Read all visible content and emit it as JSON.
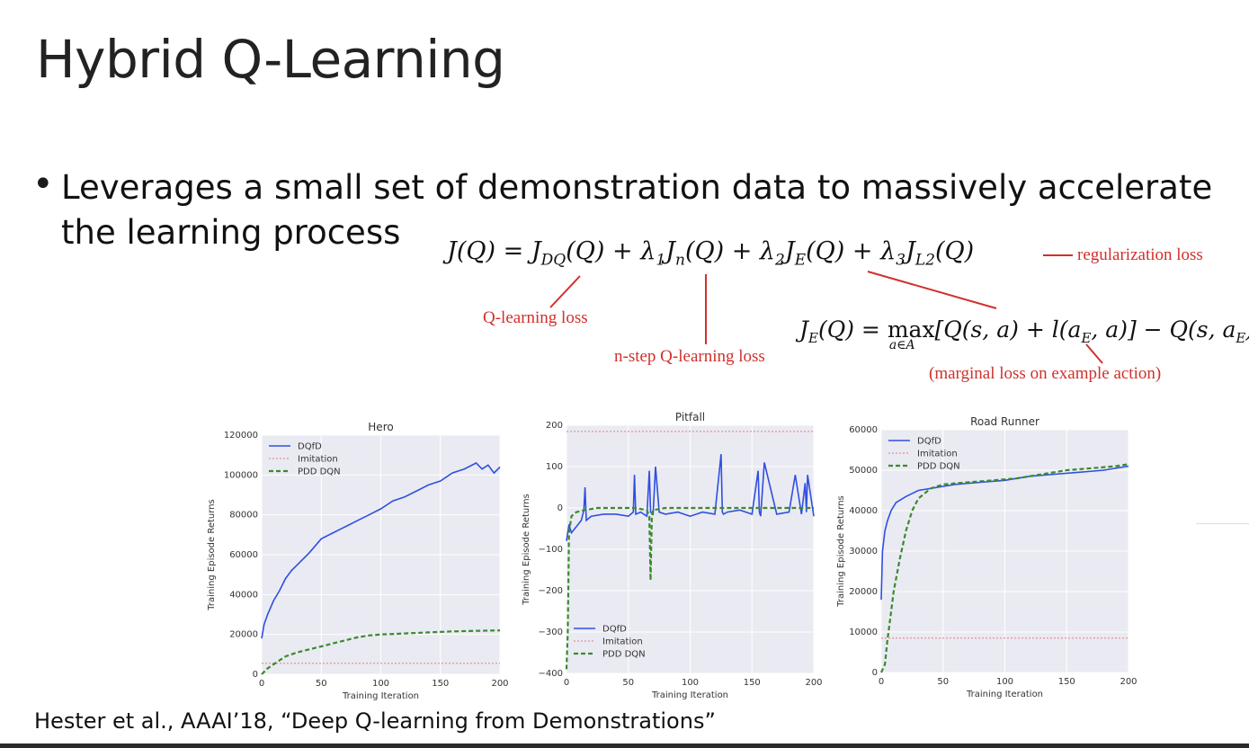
{
  "slide": {
    "title": "Hybrid Q-Learning",
    "bullet": "Leverages a small set of demonstration data to massively accelerate the learning process",
    "citation": "Hester et al., AAAI’18, “Deep Q-learning from Demonstrations”"
  },
  "equations": {
    "main": "J(Q) = J_DQ(Q) + λ1 J_n(Q) + λ2 J_E(Q) + λ3 J_L2(Q)",
    "margin": "J_E(Q) = max_{a∈A} [Q(s,a) + l(a_E,a)] − Q(s,a_E)"
  },
  "annotations": {
    "regularization": "regularization loss",
    "qlearning": "Q-learning loss",
    "nstep": "n-step Q-learning loss",
    "marginal": "(marginal loss on example action)"
  },
  "colors": {
    "annotation": "#d0302c",
    "dqfd": "#2f4fe0",
    "imitation": "#e8a0a0",
    "pdd": "#3a8a2e",
    "plot_bg": "#eaeaf2"
  },
  "chart_data": [
    {
      "type": "line",
      "title": "Hero",
      "xlabel": "Training Iteration",
      "ylabel": "Training Episode Returns",
      "xlim": [
        0,
        200
      ],
      "ylim": [
        0,
        120000
      ],
      "xticks": [
        0,
        50,
        100,
        150,
        200
      ],
      "yticks": [
        0,
        20000,
        40000,
        60000,
        80000,
        100000,
        120000
      ],
      "legend_position": "top-left",
      "grid": true,
      "series": [
        {
          "name": "DQfD",
          "style": "solid",
          "x": [
            0,
            2,
            5,
            10,
            15,
            20,
            25,
            30,
            40,
            50,
            60,
            70,
            80,
            90,
            100,
            110,
            120,
            130,
            140,
            150,
            160,
            170,
            180,
            185,
            190,
            195,
            200
          ],
          "y": [
            18000,
            25000,
            30000,
            37000,
            42000,
            48000,
            52000,
            55000,
            61000,
            68000,
            71000,
            74000,
            77000,
            80000,
            83000,
            87000,
            89000,
            92000,
            95000,
            97000,
            101000,
            103000,
            106000,
            103000,
            105000,
            101000,
            104000
          ]
        },
        {
          "name": "Imitation",
          "style": "dotted",
          "x": [
            0,
            200
          ],
          "y": [
            5500,
            5500
          ]
        },
        {
          "name": "PDD DQN",
          "style": "dashed",
          "x": [
            0,
            5,
            10,
            15,
            20,
            30,
            40,
            50,
            60,
            70,
            80,
            90,
            100,
            120,
            140,
            160,
            180,
            200
          ],
          "y": [
            0,
            3000,
            5000,
            7000,
            9000,
            11000,
            12500,
            14000,
            15500,
            17000,
            18500,
            19500,
            20000,
            20500,
            21000,
            21500,
            21800,
            22000
          ]
        }
      ]
    },
    {
      "type": "line",
      "title": "Pitfall",
      "xlabel": "Training Iteration",
      "ylabel": "Training Episode Returns",
      "xlim": [
        0,
        200
      ],
      "ylim": [
        -400,
        200
      ],
      "xticks": [
        0,
        50,
        100,
        150,
        200
      ],
      "yticks": [
        -400,
        -300,
        -200,
        -100,
        0,
        100,
        200
      ],
      "legend_position": "bottom-left",
      "grid": true,
      "series": [
        {
          "name": "DQfD",
          "style": "solid",
          "x": [
            0,
            2,
            4,
            8,
            12,
            14,
            15,
            16,
            20,
            30,
            40,
            50,
            54,
            55,
            56,
            60,
            65,
            67,
            68,
            70,
            72,
            75,
            80,
            90,
            100,
            110,
            120,
            125,
            126,
            127,
            130,
            140,
            150,
            155,
            156,
            157,
            160,
            170,
            180,
            185,
            190,
            193,
            194,
            195,
            200
          ],
          "y": [
            -80,
            -40,
            -60,
            -45,
            -30,
            -5,
            50,
            -30,
            -20,
            -15,
            -15,
            -20,
            -10,
            80,
            -15,
            -10,
            -20,
            90,
            -10,
            -15,
            100,
            -10,
            -15,
            -10,
            -20,
            -10,
            -15,
            130,
            -10,
            -15,
            -10,
            -5,
            -15,
            90,
            -10,
            -20,
            110,
            -15,
            -10,
            80,
            -15,
            60,
            -10,
            80,
            -20
          ]
        },
        {
          "name": "Imitation",
          "style": "dotted",
          "x": [
            0,
            200
          ],
          "y": [
            185,
            185
          ]
        },
        {
          "name": "PDD DQN",
          "style": "dashed",
          "x": [
            0,
            1,
            2,
            4,
            8,
            15,
            25,
            40,
            55,
            65,
            67,
            68,
            69,
            70,
            80,
            100,
            120,
            150,
            180,
            200
          ],
          "y": [
            -390,
            -300,
            -60,
            -20,
            -10,
            -5,
            0,
            0,
            0,
            -5,
            -20,
            -175,
            -20,
            -5,
            0,
            0,
            0,
            0,
            0,
            0
          ]
        }
      ]
    },
    {
      "type": "line",
      "title": "Road Runner",
      "xlabel": "Training Iteration",
      "ylabel": "Training Episode Returns",
      "xlim": [
        0,
        200
      ],
      "ylim": [
        0,
        60000
      ],
      "xticks": [
        0,
        50,
        100,
        150,
        200
      ],
      "yticks": [
        0,
        10000,
        20000,
        30000,
        40000,
        50000,
        60000
      ],
      "legend_position": "top-left",
      "grid": true,
      "series": [
        {
          "name": "DQfD",
          "style": "solid",
          "x": [
            0,
            1,
            3,
            5,
            8,
            12,
            20,
            30,
            40,
            50,
            60,
            80,
            100,
            120,
            140,
            160,
            180,
            200
          ],
          "y": [
            18000,
            30000,
            35000,
            37500,
            40000,
            42000,
            43500,
            45000,
            45500,
            46000,
            46500,
            47000,
            47500,
            48500,
            49000,
            49500,
            50000,
            51000
          ]
        },
        {
          "name": "Imitation",
          "style": "dotted",
          "x": [
            0,
            200
          ],
          "y": [
            8500,
            8500
          ]
        },
        {
          "name": "PDD DQN",
          "style": "dashed",
          "x": [
            0,
            3,
            5,
            8,
            10,
            15,
            20,
            25,
            30,
            40,
            50,
            70,
            90,
            110,
            130,
            150,
            170,
            190,
            200
          ],
          "y": [
            0,
            2000,
            8000,
            15000,
            20000,
            28000,
            35000,
            40000,
            43000,
            45500,
            46500,
            47000,
            47500,
            48000,
            49000,
            50000,
            50500,
            51000,
            51500
          ]
        }
      ]
    }
  ]
}
